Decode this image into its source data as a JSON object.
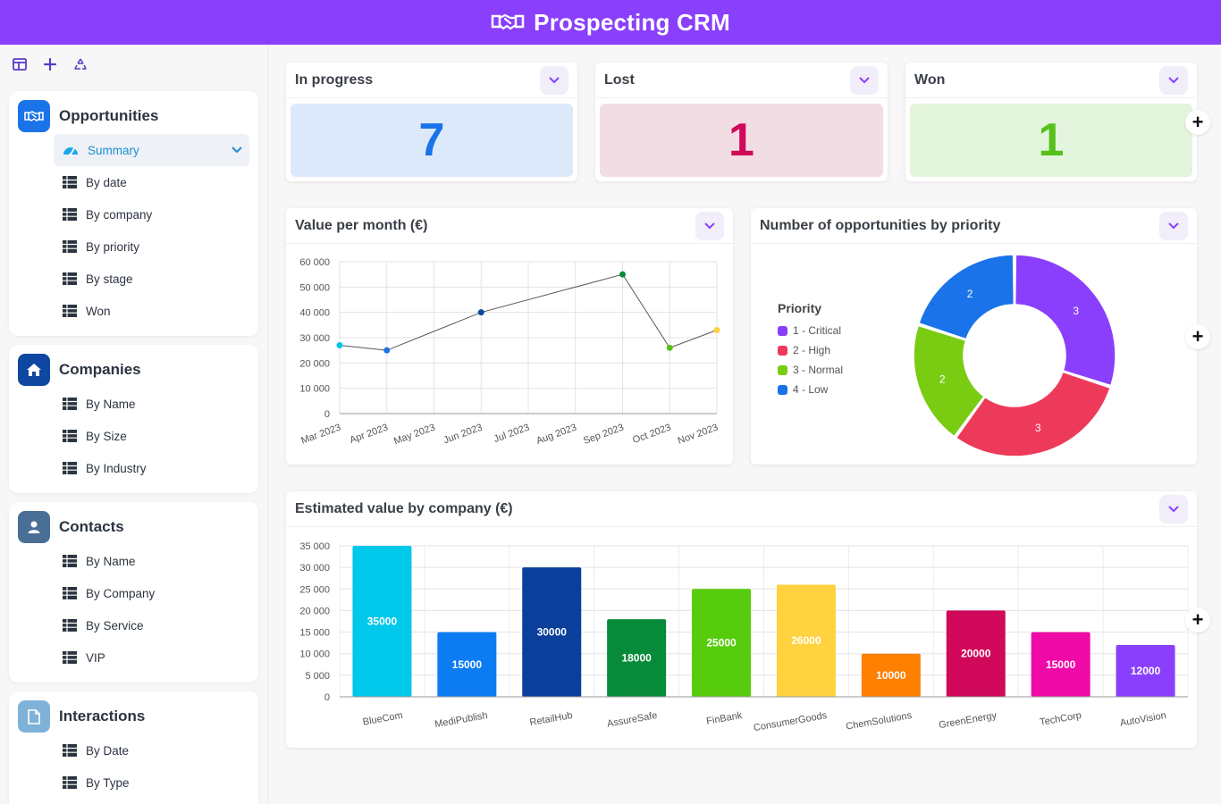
{
  "app": {
    "title": "Prospecting CRM"
  },
  "sidebar": {
    "sections": [
      {
        "title": "Opportunities",
        "icon": "handshake-icon",
        "color": "#1a73e8",
        "items": [
          {
            "label": "Summary",
            "icon": "dashboard-icon",
            "active": true
          },
          {
            "label": "By date",
            "icon": "table-icon"
          },
          {
            "label": "By company",
            "icon": "table-icon"
          },
          {
            "label": "By priority",
            "icon": "table-icon"
          },
          {
            "label": "By stage",
            "icon": "table-icon"
          },
          {
            "label": "Won",
            "icon": "table-icon"
          }
        ]
      },
      {
        "title": "Companies",
        "icon": "home-icon",
        "color": "#0d47a1",
        "items": [
          {
            "label": "By Name",
            "icon": "table-icon"
          },
          {
            "label": "By Size",
            "icon": "table-icon"
          },
          {
            "label": "By Industry",
            "icon": "table-icon"
          }
        ]
      },
      {
        "title": "Contacts",
        "icon": "person-icon",
        "color": "#4a6f96",
        "items": [
          {
            "label": "By Name",
            "icon": "table-icon"
          },
          {
            "label": "By Company",
            "icon": "table-icon"
          },
          {
            "label": "By Service",
            "icon": "table-icon"
          },
          {
            "label": "VIP",
            "icon": "table-icon"
          }
        ]
      },
      {
        "title": "Interactions",
        "icon": "document-icon",
        "color": "#7fb2d8",
        "items": [
          {
            "label": "By Date",
            "icon": "table-icon"
          },
          {
            "label": "By Type",
            "icon": "table-icon"
          }
        ]
      }
    ]
  },
  "kpis": [
    {
      "title": "In progress",
      "value": "7",
      "bg": "#dce9fb",
      "color": "#1a73e8"
    },
    {
      "title": "Lost",
      "value": "1",
      "bg": "#f3dde4",
      "color": "#d0095a"
    },
    {
      "title": "Won",
      "value": "1",
      "bg": "#e3f5dc",
      "color": "#55c11a"
    }
  ],
  "line_panel": {
    "title": "Value per month (€)"
  },
  "donut_panel": {
    "title": "Number of opportunities by priority"
  },
  "bar_panel": {
    "title": "Estimated value by company (€)"
  },
  "chart_data": [
    {
      "type": "line",
      "title": "Value per month (€)",
      "categories": [
        "Mar 2023",
        "Apr 2023",
        "May 2023",
        "Jun 2023",
        "Jul 2023",
        "Aug 2023",
        "Sep 2023",
        "Oct 2023",
        "Nov 2023"
      ],
      "x": [
        "Mar 2023",
        "Apr 2023",
        "Jun 2023",
        "Sep 2023",
        "Oct 2023",
        "Nov 2023"
      ],
      "values": [
        27000,
        25000,
        40000,
        55000,
        26000,
        33000
      ],
      "point_colors": [
        "#00c5e8",
        "#1a73e8",
        "#0d47a1",
        "#0a8a3a",
        "#55c11a",
        "#ffd23f"
      ],
      "ylim": [
        0,
        60000
      ],
      "yticks": [
        "0",
        "10 000",
        "20 000",
        "30 000",
        "40 000",
        "50 000",
        "60 000"
      ],
      "grid": true
    },
    {
      "type": "pie",
      "title": "Number of opportunities by priority",
      "legend_title": "Priority",
      "legend_position": "left",
      "categories": [
        "1 - Critical",
        "2 - High",
        "3 - Normal",
        "4 - Low"
      ],
      "values": [
        3,
        3,
        2,
        2
      ],
      "colors": [
        "#8a3ffc",
        "#ee3a5a",
        "#7acc12",
        "#1a73e8"
      ]
    },
    {
      "type": "bar",
      "title": "Estimated value by company (€)",
      "categories": [
        "BlueCom",
        "MediPublish",
        "RetailHub",
        "AssureSafe",
        "FinBank",
        "ConsumerGoods",
        "ChemSolutions",
        "GreenEnergy",
        "TechCorp",
        "AutoVision"
      ],
      "values": [
        35000,
        15000,
        30000,
        18000,
        25000,
        26000,
        10000,
        20000,
        15000,
        12000
      ],
      "colors": [
        "#00c8ea",
        "#0d7cf2",
        "#0a3f9c",
        "#078a3a",
        "#57cc0d",
        "#ffd23f",
        "#ff7f00",
        "#d0095a",
        "#ef0aa7",
        "#8a3ffc"
      ],
      "ylim": [
        0,
        35000
      ],
      "yticks": [
        "0",
        "5 000",
        "10 000",
        "15 000",
        "20 000",
        "25 000",
        "30 000",
        "35 000"
      ],
      "grid": true
    }
  ]
}
